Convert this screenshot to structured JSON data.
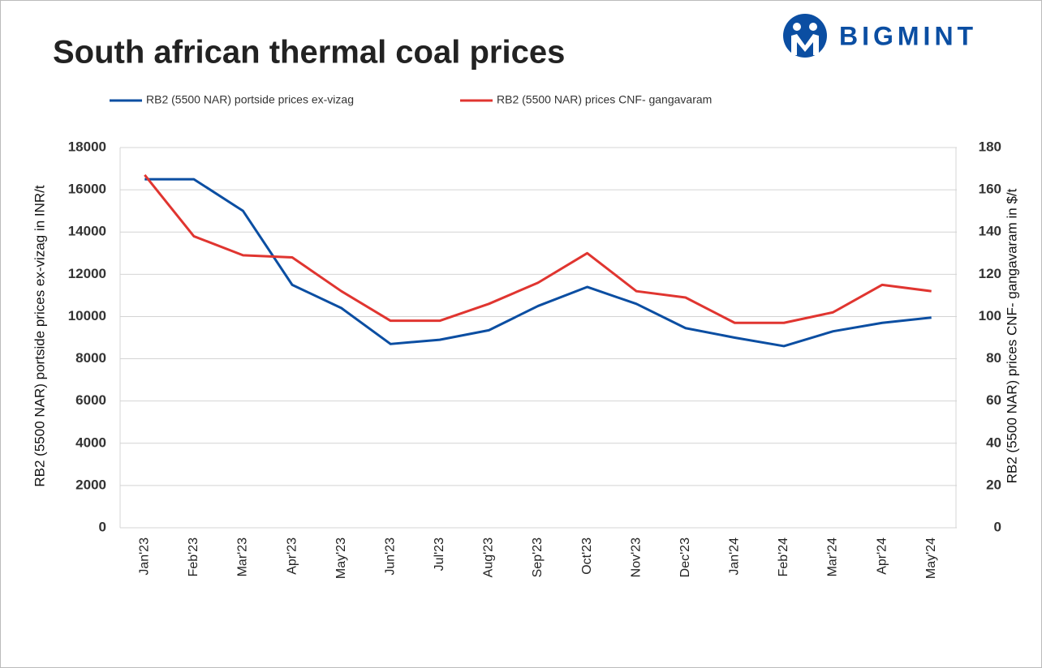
{
  "brand": "BIGMINT",
  "chart_data": {
    "type": "line",
    "title": "South african thermal coal prices",
    "categories": [
      "Jan'23",
      "Feb'23",
      "Mar'23",
      "Apr'23",
      "May'23",
      "Jun'23",
      "Jul'23",
      "Aug'23",
      "Sep'23",
      "Oct'23",
      "Nov'23",
      "Dec'23",
      "Jan'24",
      "Feb'24",
      "Mar'24",
      "Apr'24",
      "May'24"
    ],
    "series": [
      {
        "name": "RB2 (5500 NAR) portside prices ex-vizag",
        "color": "#0b4ea2",
        "values": [
          16500,
          16500,
          15000,
          11500,
          10400,
          8700,
          8900,
          9350,
          10500,
          11400,
          10600,
          9450,
          9000,
          8600,
          9300,
          9700,
          9950
        ]
      },
      {
        "name": "RB2 (5500 NAR) prices CNF- gangavaram",
        "color": "#e03530",
        "axis": "y2",
        "values": [
          167,
          138,
          129,
          128,
          112,
          98,
          98,
          106,
          116,
          130,
          112,
          109,
          97,
          97,
          102,
          115,
          112
        ]
      }
    ],
    "ylabel": "RB2 (5500 NAR) portside prices ex-vizag  in INR/t",
    "y2label": "RB2 (5500 NAR) prices CNF- gangavaram in $/t",
    "ylim": [
      0,
      18000
    ],
    "yticks": [
      0,
      2000,
      4000,
      6000,
      8000,
      10000,
      12000,
      14000,
      16000,
      18000
    ],
    "y2lim": [
      0,
      180
    ],
    "y2ticks": [
      0,
      20,
      40,
      60,
      80,
      100,
      120,
      140,
      160,
      180
    ],
    "grid": true,
    "legend": "top"
  }
}
